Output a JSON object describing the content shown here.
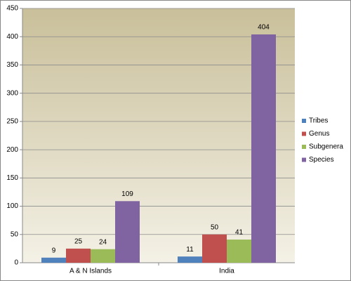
{
  "chart_data": {
    "type": "bar",
    "categories": [
      "A & N Islands",
      "India"
    ],
    "series": [
      {
        "name": "Tribes",
        "color": "#4f81bd",
        "values": [
          9,
          11
        ]
      },
      {
        "name": "Genus",
        "color": "#c0504d",
        "values": [
          25,
          50
        ]
      },
      {
        "name": "Subgenera",
        "color": "#9bbb59",
        "values": [
          24,
          41
        ]
      },
      {
        "name": "Species",
        "color": "#8064a2",
        "values": [
          109,
          404
        ]
      }
    ],
    "ylim": [
      0,
      450
    ],
    "yticks": [
      0,
      50,
      100,
      150,
      200,
      250,
      300,
      350,
      400,
      450
    ],
    "grid": true,
    "legend": "right"
  }
}
